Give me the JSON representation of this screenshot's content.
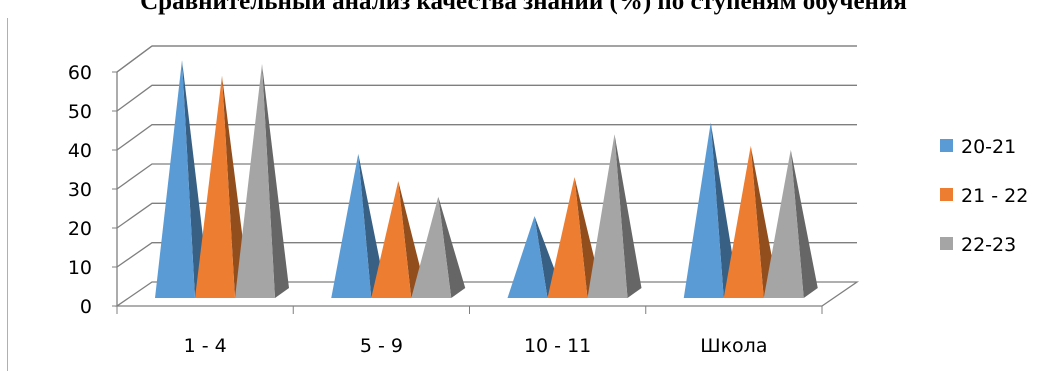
{
  "chart_data": {
    "type": "bar",
    "title": "Сравнительный анализ качества знаний (%) по ступеням обучения",
    "categories": [
      "1 - 4",
      "5 - 9",
      "10 - 11",
      "Школа"
    ],
    "series": [
      {
        "name": "20-21",
        "values": [
          61,
          37,
          21,
          45
        ],
        "color": "#5b9bd5"
      },
      {
        "name": "21 - 22",
        "values": [
          57,
          30,
          31,
          39
        ],
        "color": "#ed7d31"
      },
      {
        "name": "22-23",
        "values": [
          60,
          26,
          42,
          38
        ],
        "color": "#a5a5a5"
      }
    ],
    "yticks": [
      "0",
      "10",
      "20",
      "30",
      "40",
      "50",
      "60"
    ],
    "ylim": [
      0,
      60
    ],
    "grid": true,
    "legend_position": "right",
    "shape": "3d-pyramid"
  }
}
